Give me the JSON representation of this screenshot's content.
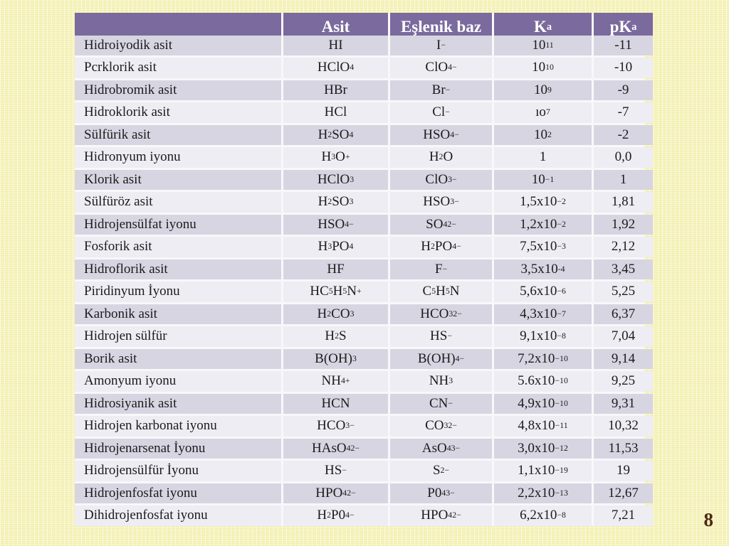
{
  "slide": {
    "page_number": "8"
  },
  "table": {
    "headers": [
      "",
      "Asit",
      "Eşlenik baz",
      "K~a~",
      "pK~a~"
    ],
    "rows": [
      {
        "name": "Hidroiyodik asit",
        "asit": "HI",
        "baz": "I^−^",
        "ka": "10^11^",
        "pka": "-11"
      },
      {
        "name": "Pcrklorik asit",
        "asit": "HClO~4~",
        "baz": "ClO~4~^−^",
        "ka": "10^10^",
        "pka": "-10"
      },
      {
        "name": "Hidrobromik asit",
        "asit": "HBr",
        "baz": "Br^−^",
        "ka": "10^9^",
        "pka": "-9"
      },
      {
        "name": "Hidroklorik asit",
        "asit": "HCl",
        "baz": "Cl^−^",
        "ka": "ıo^7^",
        "pka": "-7"
      },
      {
        "name": "Sülfürik asit",
        "asit": "H~2~SO~4~",
        "baz": "HSO~4~^−^",
        "ka": "10^2^",
        "pka": "-2"
      },
      {
        "name": "Hidronyum iyonu",
        "asit": "H~3~O^+^",
        "baz": "H~2~O",
        "ka": "1",
        "pka": "0,0"
      },
      {
        "name": "Klorik asit",
        "asit": "HClO~3~",
        "baz": "ClO~3~^−^",
        "ka": "10^−1^",
        "pka": "1"
      },
      {
        "name": "Sülfüröz asit",
        "asit": "H~2~SO~3~",
        "baz": "HSO~3~^−^",
        "ka": "1,5x10^−2^",
        "pka": "1,81"
      },
      {
        "name": "Hidrojensülfat iyonu",
        "asit": "HSO~4~^−^",
        "baz": "SO~4~^2−^",
        "ka": "1,2x10^−2^",
        "pka": "1,92"
      },
      {
        "name": "Fosforik asit",
        "asit": "H~3~PO~4~",
        "baz": "H~2~PO~4~^−^",
        "ka": "7,5x10^−3^",
        "pka": "2,12"
      },
      {
        "name": "Hidroflorik asit",
        "asit": "HF",
        "baz": "F^−^",
        "ka": "3,5x10^-4^",
        "pka": "3,45"
      },
      {
        "name": "Piridinyum İyonu",
        "asit": "HC~5~H~5~N^+^",
        "baz": "C~5~H~5~N",
        "ka": "5,6x10^−6^",
        "pka": "5,25"
      },
      {
        "name": "Karbonik asit",
        "asit": "H~2~CO~3~",
        "baz": "HCO~3~^2−^",
        "ka": "4,3x10^−7^",
        "pka": "6,37"
      },
      {
        "name": "Hidrojen sülfür",
        "asit": "H~2~S",
        "baz": "HS^−^",
        "ka": "9,1x10^−8^",
        "pka": "7,04"
      },
      {
        "name": "Borik asit",
        "asit": "B(OH)~3~",
        "baz": "B(OH)~4~^−^",
        "ka": "7,2x10^−10^",
        "pka": "9,14"
      },
      {
        "name": "Amonyum iyonu",
        "asit": "NH~4~^+^",
        "baz": "NH~3~",
        "ka": "5.6x10^−10^",
        "pka": "9,25"
      },
      {
        "name": "Hidrosiyanik asit",
        "asit": "HCN",
        "baz": "CN^−^",
        "ka": "4,9x10^−10^",
        "pka": "9,31"
      },
      {
        "name": "Hidrojen karbonat iyonu",
        "asit": "HCO~3~^−^",
        "baz": "CO~3~^2−^",
        "ka": "4,8x10^−11^",
        "pka": "10,32"
      },
      {
        "name": "Hidrojenarsenat İyonu",
        "asit": "HAsO~4~^2−^",
        "baz": "AsO~4~^3−^",
        "ka": "3,0x10^−12^",
        "pka": "11,53"
      },
      {
        "name": "Hidrojensülfür İyonu",
        "asit": "HS^−^",
        "baz": "S^2−^",
        "ka": "1,1x10^−19^",
        "pka": "19"
      },
      {
        "name": "Hidrojenfosfat iyonu",
        "asit": "HPO~4~^2−^",
        "baz": "P0~4~^3−^",
        "ka": "2,2x10^−13^",
        "pka": "12,67"
      },
      {
        "name": "Dihidrojenfosfat iyonu",
        "asit": "H~2~P0~4~^−^",
        "baz": "HPO~4~^2−^",
        "ka": "6,2x10^−8^",
        "pka": "7,21"
      }
    ]
  },
  "colors": {
    "header_bg": "#7b6a9d",
    "row_odd_bg": "#d8d5e2",
    "row_even_bg": "#eeedf3",
    "slide_bg": "#f7f4bf",
    "page_number_color": "#4b2b12"
  }
}
